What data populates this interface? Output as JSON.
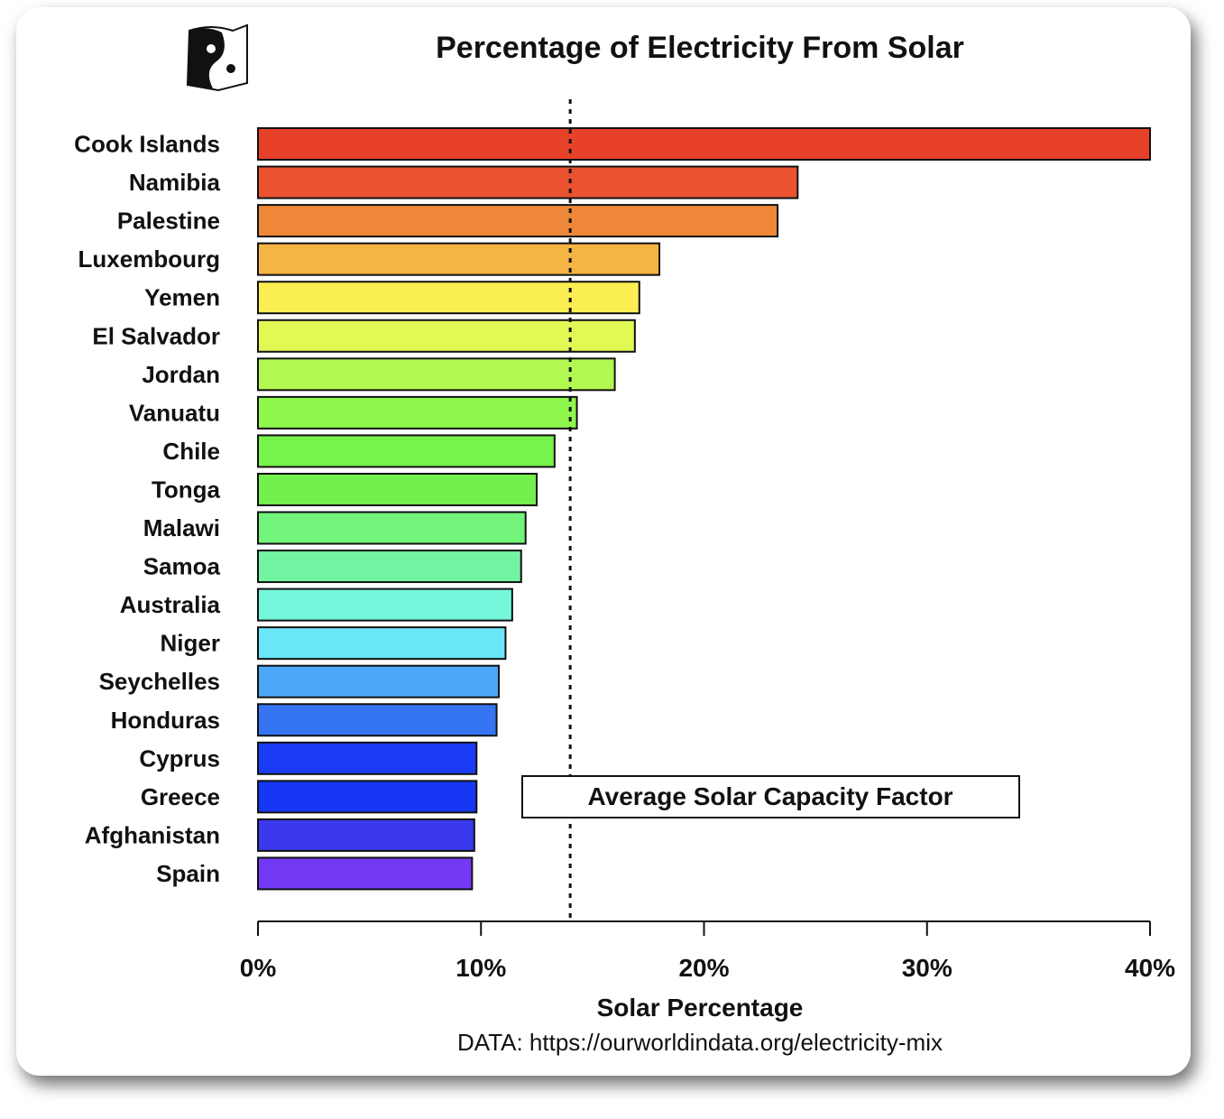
{
  "chart_data": {
    "type": "bar",
    "orientation": "horizontal",
    "title": "Percentage of Electricity From Solar",
    "xlabel": "Solar Percentage",
    "ylabel": "",
    "source": "DATA: https://ourworldindata.org/electricity-mix",
    "xlim": [
      0,
      40
    ],
    "xticks": [
      0,
      10,
      20,
      30,
      40
    ],
    "xtick_labels": [
      "0%",
      "10%",
      "20%",
      "30%",
      "40%"
    ],
    "grid": false,
    "categories": [
      "Cook Islands",
      "Namibia",
      "Palestine",
      "Luxembourg",
      "Yemen",
      "El Salvador",
      "Jordan",
      "Vanuatu",
      "Chile",
      "Tonga",
      "Malawi",
      "Samoa",
      "Australia",
      "Niger",
      "Seychelles",
      "Honduras",
      "Cyprus",
      "Greece",
      "Afghanistan",
      "Spain"
    ],
    "values": [
      40.0,
      24.2,
      23.3,
      18.0,
      17.1,
      16.9,
      16.0,
      14.3,
      13.3,
      12.5,
      12.0,
      11.8,
      11.4,
      11.1,
      10.8,
      10.7,
      9.8,
      9.8,
      9.7,
      9.6
    ],
    "colors": [
      "#e8412a",
      "#eb5230",
      "#ee8838",
      "#f5b544",
      "#fbee52",
      "#e1f855",
      "#b1f850",
      "#8ef74c",
      "#76f34c",
      "#73f04e",
      "#73f47a",
      "#72f4a2",
      "#74f7da",
      "#6ae6f9",
      "#4ca7f8",
      "#3575f4",
      "#1a3cf4",
      "#1637f4",
      "#3a39ee",
      "#7439f4"
    ],
    "reference_line": {
      "value": 14.0,
      "label": "Average Solar Capacity Factor",
      "style": "dotted"
    }
  }
}
